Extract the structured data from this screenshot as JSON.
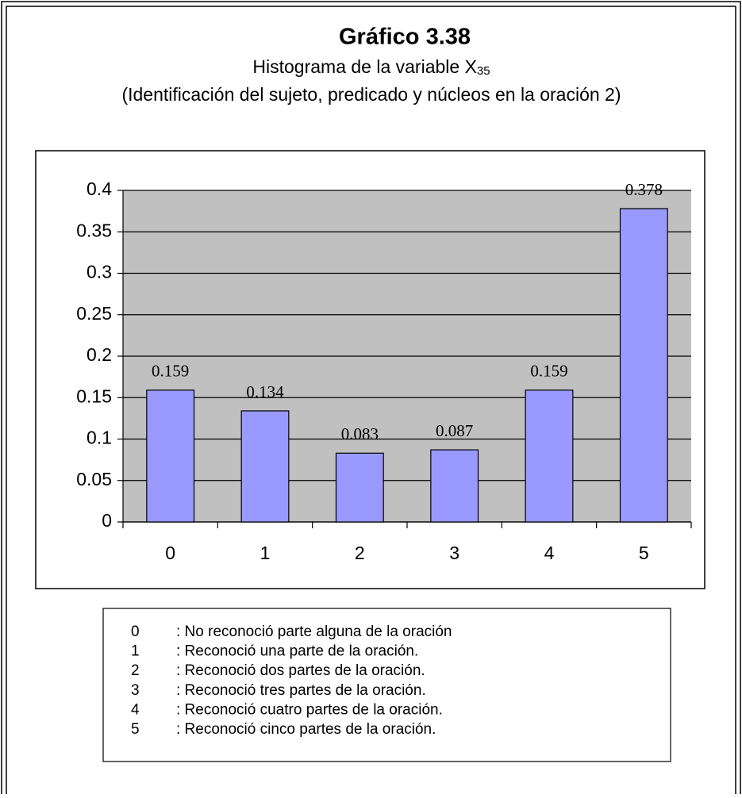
{
  "title": "Gráfico 3.38",
  "subtitle": "Histograma de la variable X",
  "subtitle_subscript": "35",
  "description": "(Identificación del  sujeto, predicado  y núcleos en la oración  2)",
  "chart_data": {
    "type": "bar",
    "categories": [
      "0",
      "1",
      "2",
      "3",
      "4",
      "5"
    ],
    "values": [
      0.159,
      0.134,
      0.083,
      0.087,
      0.159,
      0.378
    ],
    "color": "#9999ff",
    "plot_background": "#c0c0c0",
    "ylim": [
      0,
      0.4
    ],
    "yticks": [
      0,
      0.05,
      0.1,
      0.15,
      0.2,
      0.25,
      0.3,
      0.35,
      0.4
    ],
    "grid": true,
    "data_labels": true
  },
  "legend": [
    {
      "code": "0",
      "text": ": No reconoció parte alguna de la oración"
    },
    {
      "code": "1",
      "text": ": Reconoció una parte de la oración."
    },
    {
      "code": "2",
      "text": ": Reconoció dos partes de la oración."
    },
    {
      "code": "3",
      "text": ": Reconoció tres partes de la oración."
    },
    {
      "code": "4",
      "text": ": Reconoció cuatro partes de la oración."
    },
    {
      "code": "5",
      "text": ": Reconoció cinco partes de la oración."
    }
  ]
}
